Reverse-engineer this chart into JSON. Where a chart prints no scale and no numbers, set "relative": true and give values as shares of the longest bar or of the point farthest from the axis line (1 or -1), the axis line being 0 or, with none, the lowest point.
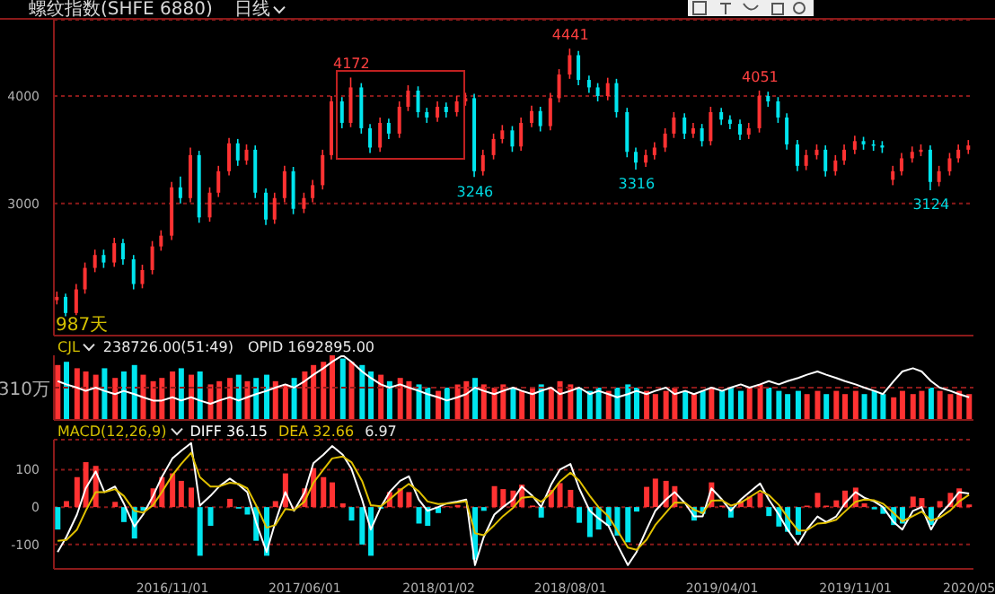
{
  "chart_data": [
    {
      "type": "candlestick",
      "title": "螺纹指数(SHFE 6880)",
      "subtitle": "日线",
      "x": [
        "2016-05-01",
        "2016-05-15",
        "2016-06-01",
        "2016-06-15",
        "2016-07-01",
        "2016-07-15",
        "2016-08-01",
        "2016-08-15",
        "2016-09-01",
        "2016-09-15",
        "2016-10-01",
        "2016-10-15",
        "2016-11-01",
        "2016-11-15",
        "2016-12-01",
        "2016-12-15",
        "2017-01-01",
        "2017-01-15",
        "2017-02-01",
        "2017-02-15",
        "2017-03-01",
        "2017-03-15",
        "2017-04-01",
        "2017-04-15",
        "2017-05-01",
        "2017-05-15",
        "2017-06-01",
        "2017-06-15",
        "2017-07-01",
        "2017-07-15",
        "2017-08-01",
        "2017-08-15",
        "2017-09-01",
        "2017-09-15",
        "2017-10-01",
        "2017-10-15",
        "2017-11-01",
        "2017-11-15",
        "2017-12-01",
        "2017-12-15",
        "2018-01-01",
        "2018-01-15",
        "2018-02-01",
        "2018-02-15",
        "2018-03-01",
        "2018-03-15",
        "2018-04-01",
        "2018-04-15",
        "2018-05-01",
        "2018-05-15",
        "2018-06-01",
        "2018-06-15",
        "2018-07-01",
        "2018-07-15",
        "2018-08-01",
        "2018-08-15",
        "2018-09-01",
        "2018-09-15",
        "2018-10-01",
        "2018-10-15",
        "2018-11-01",
        "2018-11-15",
        "2018-12-01",
        "2018-12-15",
        "2019-01-01",
        "2019-01-15",
        "2019-02-01",
        "2019-02-15",
        "2019-03-01",
        "2019-03-15",
        "2019-04-01",
        "2019-04-15",
        "2019-05-01",
        "2019-05-15",
        "2019-06-01",
        "2019-06-15",
        "2019-07-01",
        "2019-07-15",
        "2019-08-01",
        "2019-08-15",
        "2019-09-01",
        "2019-09-15",
        "2019-10-01",
        "2019-10-15",
        "2019-11-01",
        "2019-11-15",
        "2019-12-01",
        "2019-12-15",
        "2020-01-01",
        "2020-01-15",
        "2020-02-01",
        "2020-02-15",
        "2020-03-01",
        "2020-03-15",
        "2020-04-01",
        "2020-04-15",
        "2020-05-01"
      ],
      "ohlc": [
        [
          2100,
          2180,
          2060,
          2130
        ],
        [
          2130,
          2160,
          1950,
          1980
        ],
        [
          1980,
          2250,
          1960,
          2200
        ],
        [
          2200,
          2450,
          2160,
          2400
        ],
        [
          2400,
          2570,
          2360,
          2520
        ],
        [
          2520,
          2570,
          2400,
          2450
        ],
        [
          2450,
          2680,
          2410,
          2630
        ],
        [
          2630,
          2670,
          2430,
          2480
        ],
        [
          2480,
          2520,
          2200,
          2250
        ],
        [
          2250,
          2430,
          2210,
          2380
        ],
        [
          2380,
          2650,
          2340,
          2600
        ],
        [
          2600,
          2750,
          2560,
          2700
        ],
        [
          2700,
          3200,
          2660,
          3150
        ],
        [
          3150,
          3250,
          3000,
          3050
        ],
        [
          3050,
          3520,
          3010,
          3450
        ],
        [
          3450,
          3490,
          2820,
          2870
        ],
        [
          2870,
          3150,
          2830,
          3100
        ],
        [
          3100,
          3350,
          3060,
          3300
        ],
        [
          3300,
          3610,
          3260,
          3560
        ],
        [
          3560,
          3600,
          3350,
          3400
        ],
        [
          3400,
          3550,
          3360,
          3500
        ],
        [
          3500,
          3540,
          3050,
          3100
        ],
        [
          3100,
          3140,
          2800,
          2850
        ],
        [
          2850,
          3100,
          2810,
          3050
        ],
        [
          3050,
          3350,
          3010,
          3300
        ],
        [
          3300,
          3340,
          2900,
          2950
        ],
        [
          2950,
          3100,
          2910,
          3050
        ],
        [
          3050,
          3220,
          3010,
          3170
        ],
        [
          3170,
          3500,
          3130,
          3450
        ],
        [
          3450,
          4000,
          3410,
          3950
        ],
        [
          3950,
          3990,
          3700,
          3750
        ],
        [
          3750,
          4172,
          3710,
          4080
        ],
        [
          4080,
          4120,
          3650,
          3700
        ],
        [
          3700,
          3740,
          3470,
          3520
        ],
        [
          3520,
          3800,
          3480,
          3750
        ],
        [
          3750,
          3790,
          3600,
          3650
        ],
        [
          3650,
          3950,
          3610,
          3900
        ],
        [
          3900,
          4100,
          3860,
          4050
        ],
        [
          4050,
          4090,
          3800,
          3850
        ],
        [
          3850,
          3890,
          3750,
          3800
        ],
        [
          3800,
          3950,
          3760,
          3900
        ],
        [
          3900,
          3940,
          3800,
          3850
        ],
        [
          3850,
          4000,
          3810,
          3950
        ],
        [
          3950,
          4030,
          3910,
          3980
        ],
        [
          3980,
          4020,
          3246,
          3300
        ],
        [
          3300,
          3500,
          3260,
          3450
        ],
        [
          3450,
          3650,
          3410,
          3600
        ],
        [
          3600,
          3730,
          3560,
          3680
        ],
        [
          3680,
          3720,
          3480,
          3530
        ],
        [
          3530,
          3800,
          3490,
          3750
        ],
        [
          3750,
          3910,
          3710,
          3860
        ],
        [
          3860,
          3900,
          3670,
          3720
        ],
        [
          3720,
          4030,
          3680,
          3980
        ],
        [
          3980,
          4250,
          3940,
          4200
        ],
        [
          4200,
          4441,
          4160,
          4380
        ],
        [
          4380,
          4420,
          4100,
          4150
        ],
        [
          4150,
          4190,
          4030,
          4080
        ],
        [
          4080,
          4120,
          3950,
          4000
        ],
        [
          4000,
          4170,
          3960,
          4120
        ],
        [
          4120,
          4160,
          3800,
          3850
        ],
        [
          3850,
          3890,
          3430,
          3480
        ],
        [
          3480,
          3520,
          3316,
          3380
        ],
        [
          3380,
          3500,
          3340,
          3450
        ],
        [
          3450,
          3570,
          3410,
          3520
        ],
        [
          3520,
          3700,
          3480,
          3650
        ],
        [
          3650,
          3850,
          3610,
          3800
        ],
        [
          3800,
          3840,
          3600,
          3650
        ],
        [
          3650,
          3750,
          3610,
          3700
        ],
        [
          3700,
          3740,
          3530,
          3580
        ],
        [
          3580,
          3900,
          3540,
          3850
        ],
        [
          3850,
          3890,
          3730,
          3780
        ],
        [
          3780,
          3820,
          3690,
          3740
        ],
        [
          3740,
          3780,
          3590,
          3640
        ],
        [
          3640,
          3750,
          3600,
          3700
        ],
        [
          3700,
          4051,
          3660,
          4000
        ],
        [
          4000,
          4040,
          3900,
          3950
        ],
        [
          3950,
          3990,
          3750,
          3800
        ],
        [
          3800,
          3840,
          3500,
          3550
        ],
        [
          3550,
          3590,
          3300,
          3350
        ],
        [
          3350,
          3500,
          3310,
          3450
        ],
        [
          3450,
          3550,
          3410,
          3500
        ],
        [
          3500,
          3540,
          3250,
          3300
        ],
        [
          3300,
          3450,
          3260,
          3400
        ],
        [
          3400,
          3550,
          3360,
          3500
        ],
        [
          3500,
          3630,
          3460,
          3580
        ],
        [
          3580,
          3620,
          3500,
          3550
        ],
        [
          3550,
          3590,
          3490,
          3540
        ],
        [
          3540,
          3580,
          3470,
          3520
        ],
        [
          3220,
          3350,
          3170,
          3300
        ],
        [
          3300,
          3470,
          3260,
          3420
        ],
        [
          3420,
          3530,
          3380,
          3480
        ],
        [
          3480,
          3550,
          3440,
          3500
        ],
        [
          3500,
          3540,
          3124,
          3200
        ],
        [
          3200,
          3350,
          3160,
          3300
        ],
        [
          3300,
          3470,
          3260,
          3420
        ],
        [
          3420,
          3550,
          3380,
          3500
        ],
        [
          3500,
          3590,
          3460,
          3540
        ]
      ],
      "colors": [
        "#ff3232",
        "#00e5ee",
        "#ff3232",
        "#ff3232",
        "#ff3232",
        "#00e5ee",
        "#ff3232",
        "#00e5ee",
        "#00e5ee",
        "#ff3232",
        "#ff3232",
        "#ff3232",
        "#ff3232",
        "#00e5ee",
        "#ff3232",
        "#00e5ee",
        "#ff3232",
        "#ff3232",
        "#ff3232",
        "#00e5ee",
        "#ff3232",
        "#00e5ee",
        "#00e5ee",
        "#ff3232",
        "#ff3232",
        "#00e5ee",
        "#ff3232",
        "#ff3232",
        "#ff3232",
        "#ff3232",
        "#00e5ee",
        "#ff3232",
        "#00e5ee",
        "#00e5ee",
        "#ff3232",
        "#00e5ee",
        "#ff3232",
        "#ff3232",
        "#00e5ee",
        "#00e5ee",
        "#ff3232",
        "#00e5ee",
        "#ff3232",
        "#ff3232",
        "#00e5ee",
        "#ff3232",
        "#ff3232",
        "#ff3232",
        "#00e5ee",
        "#ff3232",
        "#ff3232",
        "#00e5ee",
        "#ff3232",
        "#ff3232",
        "#ff3232",
        "#00e5ee",
        "#00e5ee",
        "#00e5ee",
        "#ff3232",
        "#00e5ee",
        "#00e5ee",
        "#00e5ee",
        "#ff3232",
        "#ff3232",
        "#ff3232",
        "#ff3232",
        "#00e5ee",
        "#ff3232",
        "#00e5ee",
        "#ff3232",
        "#00e5ee",
        "#00e5ee",
        "#00e5ee",
        "#ff3232",
        "#ff3232",
        "#00e5ee",
        "#00e5ee",
        "#00e5ee",
        "#00e5ee",
        "#ff3232",
        "#ff3232",
        "#00e5ee",
        "#ff3232",
        "#ff3232",
        "#ff3232",
        "#00e5ee",
        "#00e5ee",
        "#00e5ee",
        "#ff3232",
        "#ff3232",
        "#ff3232",
        "#ff3232",
        "#00e5ee",
        "#ff3232",
        "#ff3232",
        "#ff3232",
        "#ff3232"
      ],
      "xlim": [
        "2016-04-25",
        "2020-05-08"
      ],
      "ylim": [
        1770,
        4710
      ],
      "yticks": [
        3000,
        4000
      ],
      "grid": "y",
      "tick_labels": "y",
      "annotations": [
        "987天",
        {
          "text": "4172",
          "x": "2017-08-15",
          "y": 4172
        },
        {
          "text": "3246",
          "x": "2018-03-01",
          "y": 3246
        },
        {
          "text": "4441",
          "x": "2018-08-01",
          "y": 4441
        },
        {
          "text": "3316",
          "x": "2018-11-15",
          "y": 3316
        },
        {
          "text": "4051",
          "x": "2019-06-01",
          "y": 4051
        },
        {
          "text": "3124",
          "x": "2020-03-01",
          "y": 3124
        }
      ]
    },
    {
      "type": "bar",
      "relative": true,
      "x": [
        "2016-05-01",
        "2016-05-15",
        "2016-06-01",
        "2016-06-15",
        "2016-07-01",
        "2016-07-15",
        "2016-08-01",
        "2016-08-15",
        "2016-09-01",
        "2016-09-15",
        "2016-10-01",
        "2016-10-15",
        "2016-11-01",
        "2016-11-15",
        "2016-12-01",
        "2016-12-15",
        "2017-01-01",
        "2017-01-15",
        "2017-02-01",
        "2017-02-15",
        "2017-03-01",
        "2017-03-15",
        "2017-04-01",
        "2017-04-15",
        "2017-05-01",
        "2017-05-15",
        "2017-06-01",
        "2017-06-15",
        "2017-07-01",
        "2017-07-15",
        "2017-08-01",
        "2017-08-15",
        "2017-09-01",
        "2017-09-15",
        "2017-10-01",
        "2017-10-15",
        "2017-11-01",
        "2017-11-15",
        "2017-12-01",
        "2017-12-15",
        "2018-01-01",
        "2018-01-15",
        "2018-02-01",
        "2018-02-15",
        "2018-03-01",
        "2018-03-15",
        "2018-04-01",
        "2018-04-15",
        "2018-05-01",
        "2018-05-15",
        "2018-06-01",
        "2018-06-15",
        "2018-07-01",
        "2018-07-15",
        "2018-08-01",
        "2018-08-15",
        "2018-09-01",
        "2018-09-15",
        "2018-10-01",
        "2018-10-15",
        "2018-11-01",
        "2018-11-15",
        "2018-12-01",
        "2018-12-15",
        "2019-01-01",
        "2019-01-15",
        "2019-02-01",
        "2019-02-15",
        "2019-03-01",
        "2019-03-15",
        "2019-04-01",
        "2019-04-15",
        "2019-05-01",
        "2019-05-15",
        "2019-06-01",
        "2019-06-15",
        "2019-07-01",
        "2019-07-15",
        "2019-08-01",
        "2019-08-15",
        "2019-09-01",
        "2019-09-15",
        "2019-10-01",
        "2019-10-15",
        "2019-11-01",
        "2019-11-15",
        "2019-12-01",
        "2019-12-15",
        "2020-01-01",
        "2020-01-15",
        "2020-02-01",
        "2020-02-15",
        "2020-03-01",
        "2020-03-15",
        "2020-04-01",
        "2020-04-15",
        "2020-05-01"
      ],
      "series": [
        {
          "type": "bar",
          "colors": [
            "#ff3232",
            "#00e5ee",
            "#ff3232",
            "#ff3232",
            "#ff3232",
            "#00e5ee",
            "#ff3232",
            "#00e5ee",
            "#00e5ee",
            "#ff3232",
            "#ff3232",
            "#ff3232",
            "#ff3232",
            "#00e5ee",
            "#ff3232",
            "#00e5ee",
            "#ff3232",
            "#ff3232",
            "#ff3232",
            "#00e5ee",
            "#ff3232",
            "#00e5ee",
            "#00e5ee",
            "#ff3232",
            "#ff3232",
            "#00e5ee",
            "#ff3232",
            "#ff3232",
            "#ff3232",
            "#ff3232",
            "#00e5ee",
            "#ff3232",
            "#00e5ee",
            "#00e5ee",
            "#ff3232",
            "#00e5ee",
            "#ff3232",
            "#ff3232",
            "#00e5ee",
            "#00e5ee",
            "#ff3232",
            "#00e5ee",
            "#ff3232",
            "#ff3232",
            "#00e5ee",
            "#ff3232",
            "#ff3232",
            "#ff3232",
            "#00e5ee",
            "#ff3232",
            "#ff3232",
            "#00e5ee",
            "#ff3232",
            "#ff3232",
            "#ff3232",
            "#00e5ee",
            "#00e5ee",
            "#00e5ee",
            "#ff3232",
            "#00e5ee",
            "#00e5ee",
            "#00e5ee",
            "#ff3232",
            "#ff3232",
            "#ff3232",
            "#ff3232",
            "#00e5ee",
            "#ff3232",
            "#00e5ee",
            "#ff3232",
            "#00e5ee",
            "#00e5ee",
            "#00e5ee",
            "#ff3232",
            "#ff3232",
            "#00e5ee",
            "#00e5ee",
            "#00e5ee",
            "#00e5ee",
            "#ff3232",
            "#ff3232",
            "#00e5ee",
            "#ff3232",
            "#ff3232",
            "#ff3232",
            "#00e5ee",
            "#00e5ee",
            "#00e5ee",
            "#ff3232",
            "#ff3232",
            "#ff3232",
            "#ff3232",
            "#00e5ee",
            "#ff3232",
            "#ff3232",
            "#ff3232",
            "#ff3232"
          ],
          "values": [
            0.85,
            0.9,
            0.8,
            0.75,
            0.7,
            0.8,
            0.65,
            0.75,
            0.85,
            0.7,
            0.6,
            0.65,
            0.75,
            0.8,
            0.7,
            0.75,
            0.55,
            0.6,
            0.65,
            0.7,
            0.6,
            0.65,
            0.7,
            0.6,
            0.55,
            0.65,
            0.75,
            0.85,
            0.9,
            1,
            0.95,
            0.9,
            0.85,
            0.75,
            0.7,
            0.6,
            0.65,
            0.6,
            0.55,
            0.5,
            0.45,
            0.5,
            0.55,
            0.6,
            0.65,
            0.55,
            0.5,
            0.55,
            0.5,
            0.45,
            0.5,
            0.55,
            0.5,
            0.6,
            0.55,
            0.5,
            0.45,
            0.5,
            0.45,
            0.5,
            0.55,
            0.5,
            0.45,
            0.4,
            0.45,
            0.5,
            0.45,
            0.4,
            0.45,
            0.5,
            0.45,
            0.5,
            0.45,
            0.5,
            0.55,
            0.5,
            0.45,
            0.4,
            0.45,
            0.4,
            0.45,
            0.4,
            0.45,
            0.4,
            0.45,
            0.4,
            0.45,
            0.4,
            0.35,
            0.45,
            0.4,
            0.45,
            0.5,
            0.45,
            0.4,
            0.45,
            0.4
          ]
        },
        {
          "type": "line",
          "color": "#ffffff",
          "values": [
            0.6,
            0.55,
            0.5,
            0.45,
            0.5,
            0.45,
            0.4,
            0.45,
            0.4,
            0.35,
            0.3,
            0.3,
            0.35,
            0.3,
            0.35,
            0.3,
            0.25,
            0.3,
            0.35,
            0.3,
            0.35,
            0.4,
            0.45,
            0.5,
            0.55,
            0.5,
            0.6,
            0.7,
            0.8,
            0.9,
            1,
            0.9,
            0.75,
            0.65,
            0.55,
            0.5,
            0.55,
            0.5,
            0.45,
            0.4,
            0.35,
            0.3,
            0.35,
            0.4,
            0.5,
            0.45,
            0.4,
            0.45,
            0.5,
            0.45,
            0.4,
            0.45,
            0.5,
            0.4,
            0.45,
            0.5,
            0.4,
            0.45,
            0.4,
            0.35,
            0.4,
            0.45,
            0.4,
            0.45,
            0.5,
            0.4,
            0.45,
            0.4,
            0.45,
            0.5,
            0.45,
            0.5,
            0.55,
            0.5,
            0.55,
            0.6,
            0.55,
            0.6,
            0.65,
            0.7,
            0.75,
            0.7,
            0.65,
            0.6,
            0.55,
            0.5,
            0.45,
            0.4,
            0.6,
            0.75,
            0.8,
            0.75,
            0.6,
            0.5,
            0.45,
            0.4,
            0.35
          ]
        }
      ],
      "xlim": [
        "2016-04-25",
        "2020-05-08"
      ],
      "tick_labels": false,
      "ref_lines": [
        {
          "axis": "y",
          "value": 0.5,
          "label": "310万",
          "color": "#8b1a1a",
          "line_style": "dashed"
        }
      ],
      "annotations": [
        "CJL",
        "238726.00(51:49)",
        "OPID 1692895.00"
      ]
    },
    {
      "type": "bar",
      "x": [
        "2016-05-01",
        "2016-05-15",
        "2016-06-01",
        "2016-06-15",
        "2016-07-01",
        "2016-07-15",
        "2016-08-01",
        "2016-08-15",
        "2016-09-01",
        "2016-09-15",
        "2016-10-01",
        "2016-10-15",
        "2016-11-01",
        "2016-11-15",
        "2016-12-01",
        "2016-12-15",
        "2017-01-01",
        "2017-01-15",
        "2017-02-01",
        "2017-02-15",
        "2017-03-01",
        "2017-03-15",
        "2017-04-01",
        "2017-04-15",
        "2017-05-01",
        "2017-05-15",
        "2017-06-01",
        "2017-06-15",
        "2017-07-01",
        "2017-07-15",
        "2017-08-01",
        "2017-08-15",
        "2017-09-01",
        "2017-09-15",
        "2017-10-01",
        "2017-10-15",
        "2017-11-01",
        "2017-11-15",
        "2017-12-01",
        "2017-12-15",
        "2018-01-01",
        "2018-01-15",
        "2018-02-01",
        "2018-02-15",
        "2018-03-01",
        "2018-03-15",
        "2018-04-01",
        "2018-04-15",
        "2018-05-01",
        "2018-05-15",
        "2018-06-01",
        "2018-06-15",
        "2018-07-01",
        "2018-07-15",
        "2018-08-01",
        "2018-08-15",
        "2018-09-01",
        "2018-09-15",
        "2018-10-01",
        "2018-10-15",
        "2018-11-01",
        "2018-11-15",
        "2018-12-01",
        "2018-12-15",
        "2019-01-01",
        "2019-01-15",
        "2019-02-01",
        "2019-02-15",
        "2019-03-01",
        "2019-03-15",
        "2019-04-01",
        "2019-04-15",
        "2019-05-01",
        "2019-05-15",
        "2019-06-01",
        "2019-06-15",
        "2019-07-01",
        "2019-07-15",
        "2019-08-01",
        "2019-08-15",
        "2019-09-01",
        "2019-09-15",
        "2019-10-01",
        "2019-10-15",
        "2019-11-01",
        "2019-11-15",
        "2019-12-01",
        "2019-12-15",
        "2020-01-01",
        "2020-01-15",
        "2020-02-01",
        "2020-02-15",
        "2020-03-01",
        "2020-03-15",
        "2020-04-01",
        "2020-04-15",
        "2020-05-01"
      ],
      "series": [
        {
          "type": "bar",
          "colors": [
            "#00e5ee",
            "#ff3232",
            "#ff3232",
            "#ff3232",
            "#ff3232",
            "#ff3232",
            "#ff3232",
            "#00e5ee",
            "#00e5ee",
            "#00e5ee",
            "#ff3232",
            "#ff3232",
            "#ff3232",
            "#ff3232",
            "#ff3232",
            "#00e5ee",
            "#00e5ee",
            "#ff3232",
            "#ff3232",
            "#00e5ee",
            "#00e5ee",
            "#00e5ee",
            "#00e5ee",
            "#ff3232",
            "#ff3232",
            "#00e5ee",
            "#ff3232",
            "#ff3232",
            "#ff3232",
            "#ff3232",
            "#ff3232",
            "#00e5ee",
            "#00e5ee",
            "#00e5ee",
            "#00e5ee",
            "#ff3232",
            "#ff3232",
            "#ff3232",
            "#00e5ee",
            "#00e5ee",
            "#00e5ee",
            "#ff3232",
            "#ff3232",
            "#ff3232",
            "#00e5ee",
            "#00e5ee",
            "#ff3232",
            "#ff3232",
            "#ff3232",
            "#ff3232",
            "#ff3232",
            "#00e5ee",
            "#ff3232",
            "#ff3232",
            "#ff3232",
            "#00e5ee",
            "#00e5ee",
            "#00e5ee",
            "#00e5ee",
            "#00e5ee",
            "#00e5ee",
            "#00e5ee",
            "#ff3232",
            "#ff3232",
            "#ff3232",
            "#ff3232",
            "#00e5ee",
            "#00e5ee",
            "#00e5ee",
            "#ff3232",
            "#ff3232",
            "#00e5ee",
            "#ff3232",
            "#ff3232",
            "#ff3232",
            "#00e5ee",
            "#00e5ee",
            "#00e5ee",
            "#00e5ee",
            "#ff3232",
            "#ff3232",
            "#ff3232",
            "#ff3232",
            "#ff3232",
            "#ff3232",
            "#ff3232",
            "#00e5ee",
            "#00e5ee",
            "#00e5ee",
            "#00e5ee",
            "#ff3232",
            "#ff3232",
            "#00e5ee",
            "#ff3232",
            "#ff3232",
            "#ff3232",
            "#ff3232"
          ],
          "values": [
            -60,
            16,
            80,
            120,
            110,
            0,
            14,
            -40,
            -84,
            -10,
            50,
            80,
            90,
            70,
            52,
            -130,
            -50,
            0,
            22,
            -4,
            -20,
            -90,
            -130,
            16,
            90,
            null,
            50,
            104,
            80,
            66,
            10,
            -36,
            -100,
            -130,
            -4,
            40,
            50,
            40,
            -44,
            -50,
            -16,
            2,
            6,
            null,
            -140,
            -10,
            56,
            48,
            44,
            60,
            4,
            -28,
            46,
            64,
            46,
            -42,
            -80,
            -60,
            -50,
            -76,
            -94,
            -12,
            54,
            76,
            70,
            56,
            null,
            -36,
            -18,
            66,
            4,
            -28,
            16,
            28,
            38,
            -24,
            -52,
            -66,
            -74,
            4,
            38,
            4,
            18,
            44,
            52,
            10,
            -6,
            -18,
            -48,
            -44,
            28,
            24,
            -48,
            16,
            38,
            50,
            7
          ]
        },
        {
          "type": "line",
          "name": "DIFF 36.15",
          "color": "#ffffff",
          "values": [
            -120,
            -80,
            -20,
            50,
            95,
            40,
            55,
            10,
            -52,
            -20,
            30,
            80,
            130,
            150,
            171,
            4,
            30,
            55,
            76,
            60,
            40,
            -40,
            -120,
            -40,
            40,
            -10,
            40,
            117,
            140,
            163,
            140,
            102,
            20,
            -60,
            0,
            40,
            70,
            82,
            20,
            -10,
            0,
            10,
            15,
            20,
            -155,
            -80,
            -20,
            0,
            20,
            55,
            30,
            0,
            60,
            100,
            115,
            50,
            -10,
            -30,
            -50,
            -100,
            -155,
            -120,
            -60,
            -10,
            20,
            40,
            10,
            -25,
            -25,
            50,
            20,
            -10,
            20,
            40,
            63,
            20,
            -20,
            -60,
            -100,
            -60,
            -25,
            -40,
            -25,
            10,
            40,
            25,
            15,
            0,
            -40,
            -60,
            -10,
            0,
            -60,
            -20,
            10,
            40,
            36
          ]
        },
        {
          "type": "line",
          "name": "DEA 32.66",
          "color": "#e0c000",
          "values": [
            -90,
            -88,
            -60,
            -10,
            40,
            40,
            48,
            30,
            -10,
            -15,
            5,
            40,
            85,
            115,
            145,
            80,
            55,
            55,
            65,
            62,
            50,
            5,
            -55,
            -48,
            -5,
            -8,
            15,
            65,
            100,
            130,
            135,
            120,
            70,
            5,
            2,
            20,
            45,
            62,
            42,
            15,
            8,
            9,
            12,
            16,
            -70,
            -75,
            -48,
            -24,
            -2,
            25,
            28,
            14,
            37,
            68,
            92,
            71,
            30,
            0,
            -25,
            -62,
            -108,
            -114,
            -87,
            -48,
            -15,
            12,
            11,
            -7,
            -16,
            17,
            18,
            4,
            12,
            26,
            44,
            32,
            6,
            -27,
            -63,
            -62,
            -44,
            -42,
            -34,
            -12,
            14,
            20,
            18,
            9,
            -16,
            -38,
            -24,
            -12,
            -36,
            -28,
            -9,
            15,
            33
          ]
        }
      ],
      "xlim": [
        "2016-04-25",
        "2020-05-08"
      ],
      "xticks": [
        {
          "value": "2016-11-01",
          "label": "2016/11/01"
        },
        {
          "value": "2017-06-01",
          "label": "2017/06/01"
        },
        {
          "value": "2018-01-02",
          "label": "2018/01/02"
        },
        {
          "value": "2018-08-01",
          "label": "2018/08/01"
        },
        {
          "value": "2019-04-01",
          "label": "2019/04/01"
        },
        {
          "value": "2019-11-01",
          "label": "2019/11/01"
        },
        {
          "value": "2020-05-01",
          "label": "2020/05"
        }
      ],
      "ylim": [
        -165,
        180
      ],
      "yticks": [
        -100,
        0,
        100
      ],
      "grid": "y",
      "legend": "top left",
      "annotations": [
        "MACD(12,26,9)",
        "6.97"
      ]
    }
  ]
}
